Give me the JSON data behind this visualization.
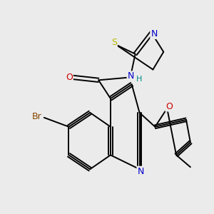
{
  "bg_color": "#ebebeb",
  "atom_colors": {
    "C": "#000000",
    "N": "#0000cc",
    "O": "#cc0000",
    "S": "#b8b800",
    "Br": "#884400",
    "H": "#008888"
  },
  "bond_color": "#000000",
  "bond_width": 1.4,
  "figsize": [
    3.0,
    3.0
  ],
  "dpi": 100
}
